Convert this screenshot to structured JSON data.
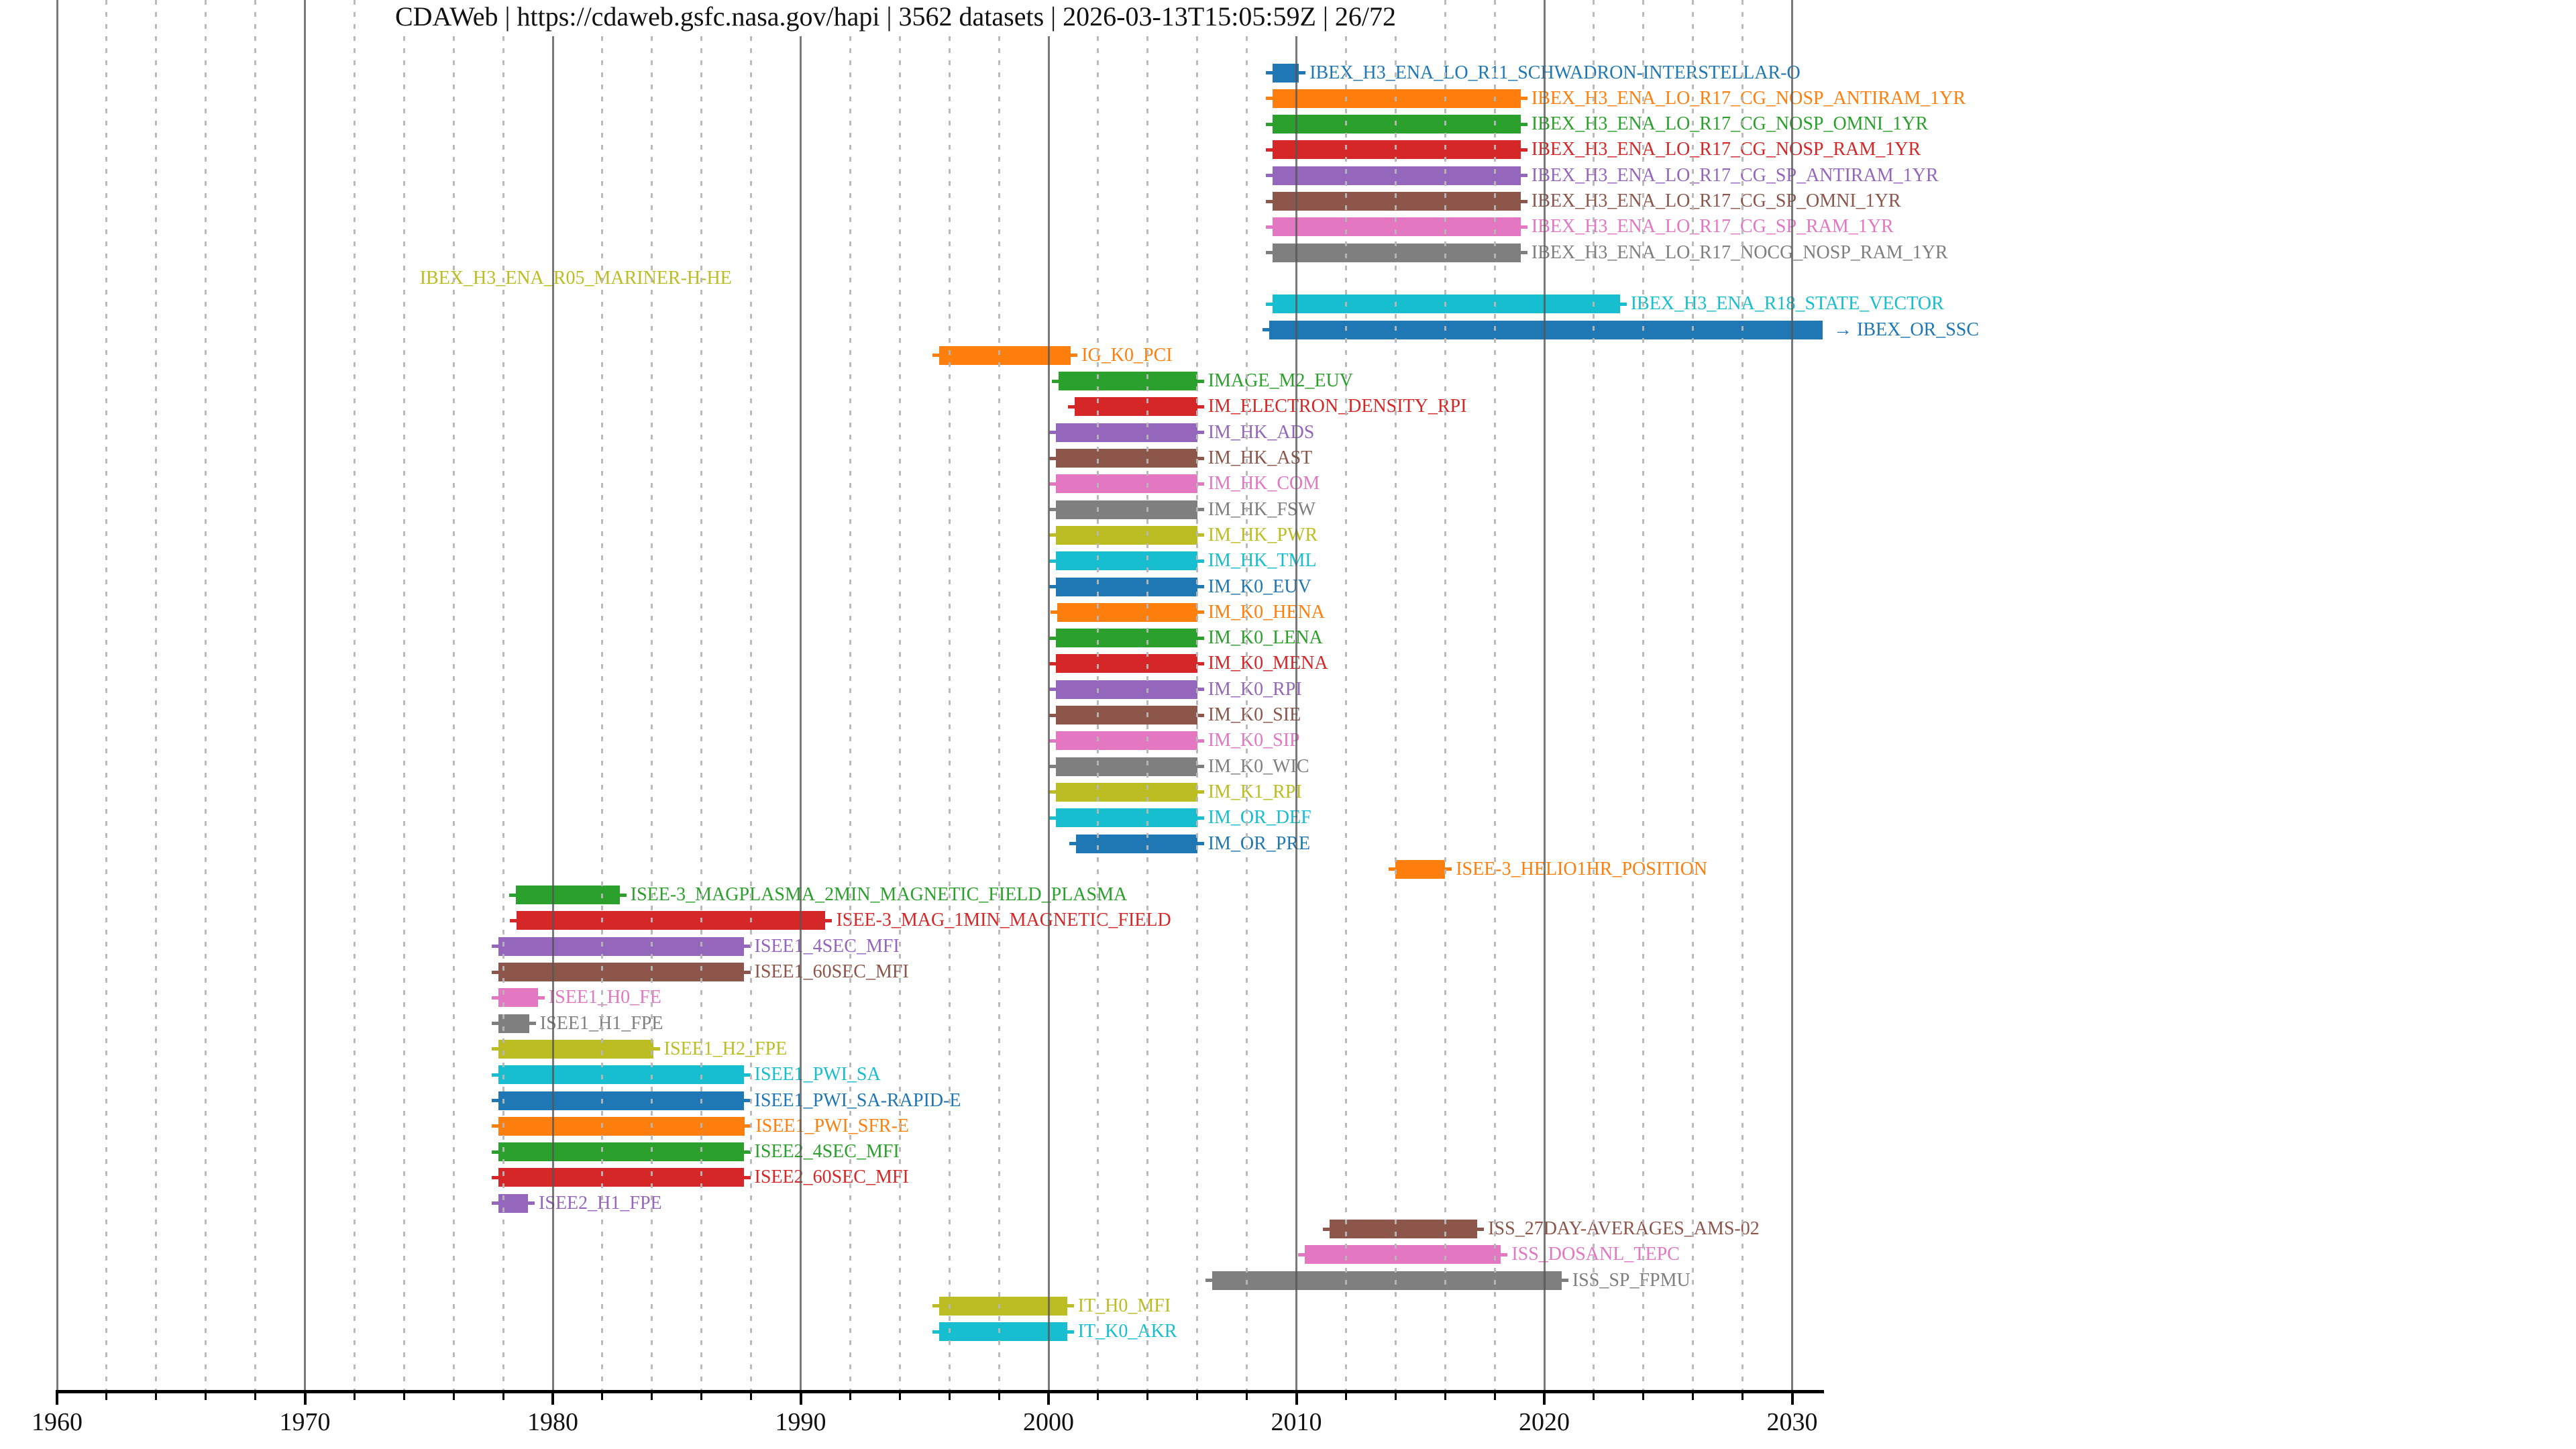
{
  "header": {
    "title": "CDAWeb | https://cdaweb.gsfc.nasa.gov/hapi | 3562 datasets | 2026-03-13T15:05:59Z | 26/72",
    "source_label": "CDAWeb",
    "url_label": "https://cdaweb.gsfc.nasa.gov/hapi",
    "dataset_count_label": "3562 datasets",
    "timestamp_label": "2026-03-13T15:05:59Z",
    "page_indicator": "26/72"
  },
  "chart_data": {
    "type": "bar",
    "variant": "horizontal-time-range coverage timeline (Gantt style), one row per dataset, label right of bar in bar color",
    "title": "CDAWeb | https://cdaweb.gsfc.nasa.gov/hapi | 3562 datasets | 2026-03-13T15:05:59Z | 26/72",
    "xlabel": "",
    "ylabel": "",
    "x_axis": {
      "min": 1960,
      "max": 2031.2,
      "major_tick_step": 10,
      "minor_tick_step": 2,
      "major_ticks": [
        1960,
        1970,
        1980,
        1990,
        2000,
        2010,
        2020,
        2030
      ],
      "grid": true,
      "grid_minor_style": "dashed light gray every 2 years",
      "grid_major_style": "solid dark gray every 10 years"
    },
    "colors": {
      "blue": "#1f77b4",
      "orange": "#ff7f0e",
      "green": "#2ca02c",
      "red": "#d62728",
      "purple": "#9467bd",
      "brown": "#8c564b",
      "pink": "#e377c2",
      "gray": "#7f7f7f",
      "olive": "#bcbd22",
      "cyan": "#17becf"
    },
    "rows": [
      {
        "label": "IBEX_H3_ENA_LO_R11_SCHWADRON-INTERSTELLAR-O",
        "color": "blue",
        "start": 2009.05,
        "end": 2010.1
      },
      {
        "label": "IBEX_H3_ENA_LO_R17_CG_NOSP_ANTIRAM_1YR",
        "color": "orange",
        "start": 2009.05,
        "end": 2019.05
      },
      {
        "label": "IBEX_H3_ENA_LO_R17_CG_NOSP_OMNI_1YR",
        "color": "green",
        "start": 2009.05,
        "end": 2019.05
      },
      {
        "label": "IBEX_H3_ENA_LO_R17_CG_NOSP_RAM_1YR",
        "color": "red",
        "start": 2009.05,
        "end": 2019.05
      },
      {
        "label": "IBEX_H3_ENA_LO_R17_CG_SP_ANTIRAM_1YR",
        "color": "purple",
        "start": 2009.05,
        "end": 2019.05
      },
      {
        "label": "IBEX_H3_ENA_LO_R17_CG_SP_OMNI_1YR",
        "color": "brown",
        "start": 2009.05,
        "end": 2019.05
      },
      {
        "label": "IBEX_H3_ENA_LO_R17_CG_SP_RAM_1YR",
        "color": "pink",
        "start": 2009.05,
        "end": 2019.05
      },
      {
        "label": "IBEX_H3_ENA_LO_R17_NOCG_NOSP_RAM_1YR",
        "color": "gray",
        "start": 2009.05,
        "end": 2019.05
      },
      {
        "label": "IBEX_H3_ENA_R05_MARINER-H-HE",
        "color": "olive",
        "start": 1974.2,
        "end": 1974.2,
        "no_bar": true
      },
      {
        "label": "IBEX_H3_ENA_R18_STATE_VECTOR",
        "color": "cyan",
        "start": 2009.05,
        "end": 2023.05
      },
      {
        "label": "IBEX_OR_SSC",
        "color": "blue",
        "start": 2008.9,
        "end": 2031.2,
        "truncated": true,
        "prefix": "→"
      },
      {
        "label": "IG_K0_PCI",
        "color": "orange",
        "start": 1995.6,
        "end": 2000.9
      },
      {
        "label": "IMAGE_M2_EUV",
        "color": "green",
        "start": 2000.4,
        "end": 2006.0
      },
      {
        "label": "IM_ELECTRON_DENSITY_RPI",
        "color": "red",
        "start": 2001.05,
        "end": 2006.0
      },
      {
        "label": "IM_HK_ADS",
        "color": "purple",
        "start": 2000.3,
        "end": 2006.0
      },
      {
        "label": "IM_HK_AST",
        "color": "brown",
        "start": 2000.3,
        "end": 2006.0
      },
      {
        "label": "IM_HK_COM",
        "color": "pink",
        "start": 2000.3,
        "end": 2006.0
      },
      {
        "label": "IM_HK_FSW",
        "color": "gray",
        "start": 2000.3,
        "end": 2006.0
      },
      {
        "label": "IM_HK_PWR",
        "color": "olive",
        "start": 2000.3,
        "end": 2006.0
      },
      {
        "label": "IM_HK_TML",
        "color": "cyan",
        "start": 2000.3,
        "end": 2006.0
      },
      {
        "label": "IM_K0_EUV",
        "color": "blue",
        "start": 2000.3,
        "end": 2006.0
      },
      {
        "label": "IM_K0_HENA",
        "color": "orange",
        "start": 2000.35,
        "end": 2006.0
      },
      {
        "label": "IM_K0_LENA",
        "color": "green",
        "start": 2000.3,
        "end": 2006.0
      },
      {
        "label": "IM_K0_MENA",
        "color": "red",
        "start": 2000.3,
        "end": 2006.0
      },
      {
        "label": "IM_K0_RPI",
        "color": "purple",
        "start": 2000.3,
        "end": 2006.0
      },
      {
        "label": "IM_K0_SIE",
        "color": "brown",
        "start": 2000.3,
        "end": 2006.0
      },
      {
        "label": "IM_K0_SIP",
        "color": "pink",
        "start": 2000.3,
        "end": 2006.0
      },
      {
        "label": "IM_K0_WIC",
        "color": "gray",
        "start": 2000.3,
        "end": 2006.0
      },
      {
        "label": "IM_K1_RPI",
        "color": "olive",
        "start": 2000.3,
        "end": 2006.0
      },
      {
        "label": "IM_OR_DEF",
        "color": "cyan",
        "start": 2000.3,
        "end": 2006.0
      },
      {
        "label": "IM_OR_PRE",
        "color": "blue",
        "start": 2001.1,
        "end": 2006.0
      },
      {
        "label": "ISEE-3_HELIO1HR_POSITION",
        "color": "orange",
        "start": 2014.0,
        "end": 2016.0
      },
      {
        "label": "ISEE-3_MAGPLASMA_2MIN_MAGNETIC_FIELD_PLASMA",
        "color": "green",
        "start": 1978.5,
        "end": 1982.7
      },
      {
        "label": "ISEE-3_MAG_1MIN_MAGNETIC_FIELD",
        "color": "red",
        "start": 1978.55,
        "end": 1991.0
      },
      {
        "label": "ISEE1_4SEC_MFI",
        "color": "purple",
        "start": 1977.8,
        "end": 1987.7
      },
      {
        "label": "ISEE1_60SEC_MFI",
        "color": "brown",
        "start": 1977.8,
        "end": 1987.7
      },
      {
        "label": "ISEE1_H0_FE",
        "color": "pink",
        "start": 1977.8,
        "end": 1979.4
      },
      {
        "label": "ISEE1_H1_FPE",
        "color": "gray",
        "start": 1977.8,
        "end": 1979.05
      },
      {
        "label": "ISEE1_H2_FPE",
        "color": "olive",
        "start": 1977.8,
        "end": 1984.05
      },
      {
        "label": "ISEE1_PWI_SA",
        "color": "cyan",
        "start": 1977.8,
        "end": 1987.7
      },
      {
        "label": "ISEE1_PWI_SA-RAPID-E",
        "color": "blue",
        "start": 1977.8,
        "end": 1987.7
      },
      {
        "label": "ISEE1_PWI_SFR-E",
        "color": "orange",
        "start": 1977.8,
        "end": 1987.75
      },
      {
        "label": "ISEE2_4SEC_MFI",
        "color": "green",
        "start": 1977.8,
        "end": 1987.7
      },
      {
        "label": "ISEE2_60SEC_MFI",
        "color": "red",
        "start": 1977.8,
        "end": 1987.7
      },
      {
        "label": "ISEE2_H1_FPE",
        "color": "purple",
        "start": 1977.8,
        "end": 1979.0
      },
      {
        "label": "ISS_27DAY-AVERAGES_AMS-02",
        "color": "brown",
        "start": 2011.35,
        "end": 2017.3
      },
      {
        "label": "ISS_DOSANL_TEPC",
        "color": "pink",
        "start": 2010.35,
        "end": 2018.25
      },
      {
        "label": "ISS_SP_FPMU",
        "color": "gray",
        "start": 2006.6,
        "end": 2020.7
      },
      {
        "label": "IT_H0_MFI",
        "color": "olive",
        "start": 1995.6,
        "end": 2000.75
      },
      {
        "label": "IT_K0_AKR",
        "color": "cyan",
        "start": 1995.6,
        "end": 2000.75
      }
    ]
  }
}
